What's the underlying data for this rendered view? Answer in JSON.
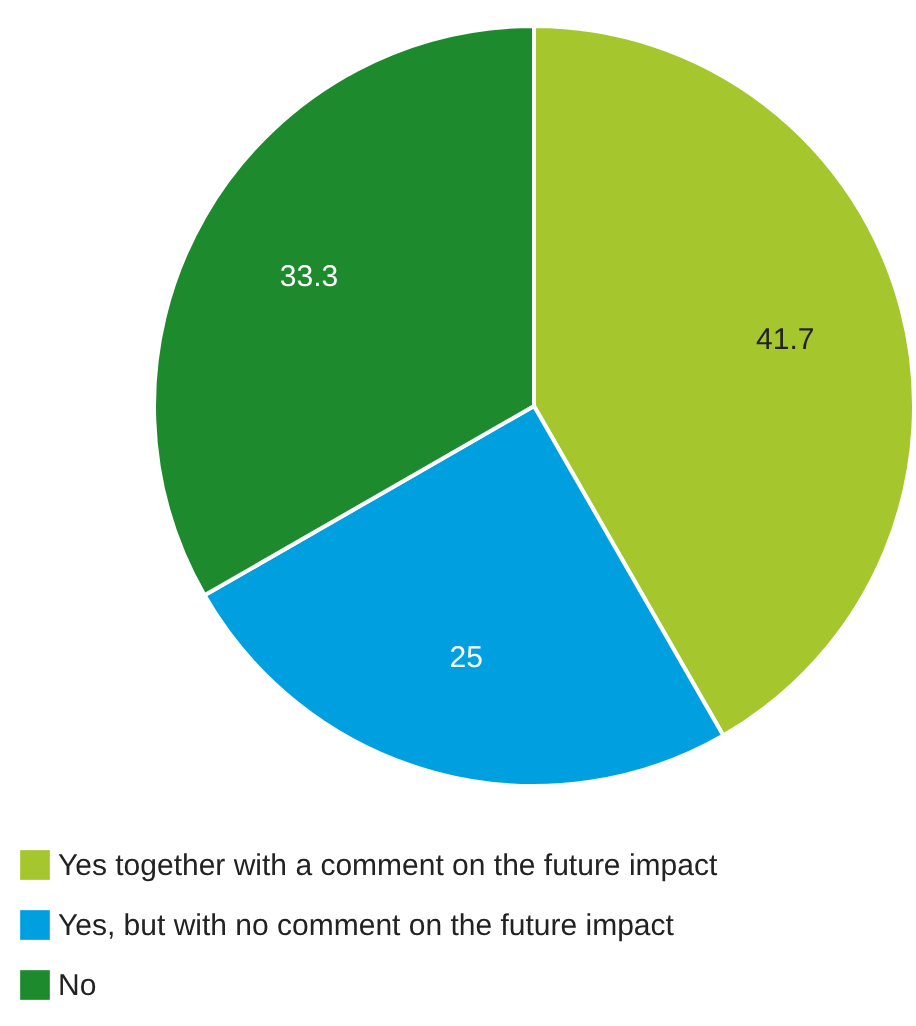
{
  "chart_data": {
    "type": "pie",
    "categories": [
      "Yes together with a comment on the future impact",
      "Yes, but with no comment on the future impact",
      "No"
    ],
    "values": [
      41.7,
      25,
      33.3
    ],
    "colors": [
      "#a5c62c",
      "#009fdf",
      "#1e8a2e"
    ],
    "data_labels": true,
    "legend": "bottom"
  }
}
